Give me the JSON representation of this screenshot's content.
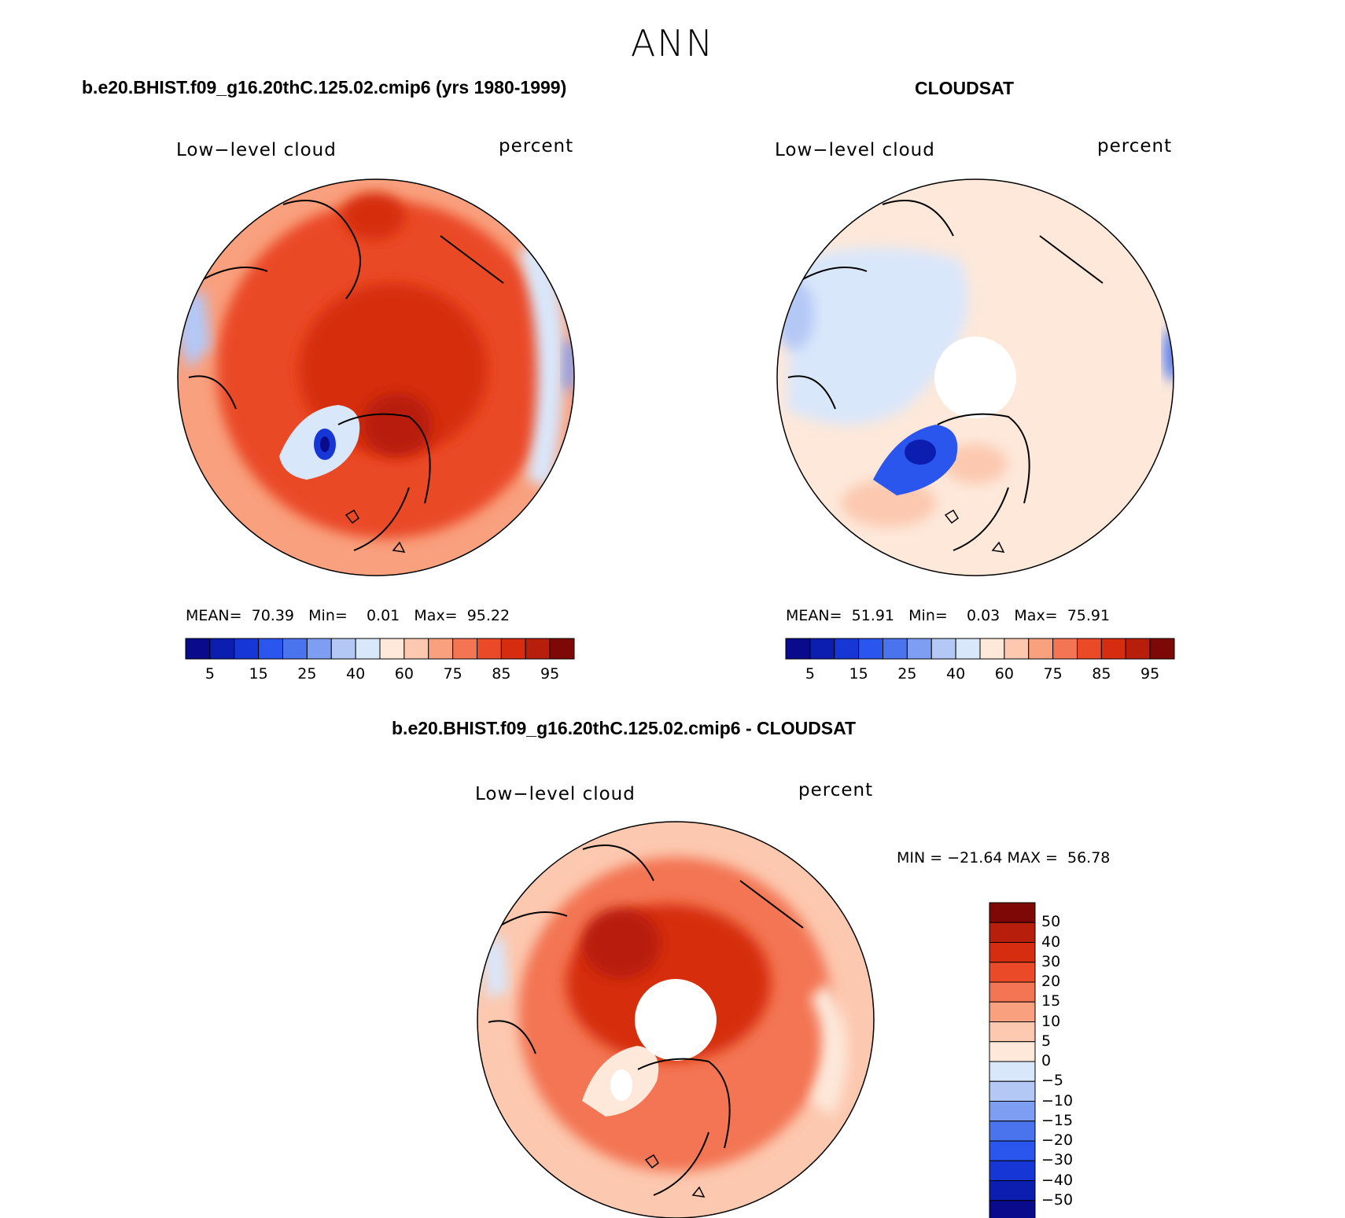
{
  "header": {
    "title": "ANN"
  },
  "panels": [
    {
      "id": "model",
      "case_title": "b.e20.BHIST.f09_g16.20thC.125.02.cmip6 (yrs 1980-1999)",
      "variable": "Low−level cloud",
      "units": "percent",
      "stats": {
        "mean_label": "MEAN=",
        "mean": "70.39",
        "min_label": "Min=",
        "min": "0.01",
        "max_label": "Max=",
        "max": "95.22"
      }
    },
    {
      "id": "obs",
      "case_title": "CLOUDSAT",
      "variable": "Low−level cloud",
      "units": "percent",
      "stats": {
        "mean_label": "MEAN=",
        "mean": "51.91",
        "min_label": "Min=",
        "min": "0.03",
        "max_label": "Max=",
        "max": "75.91"
      }
    },
    {
      "id": "diff",
      "case_title": "b.e20.BHIST.f09_g16.20thC.125.02.cmip6 - CLOUDSAT",
      "variable": "Low−level cloud",
      "units": "percent",
      "stats": {
        "text": "MIN = −21.64 MAX =  56.78"
      }
    }
  ],
  "colorbars": {
    "abs": {
      "colors": [
        "#0a0a8c",
        "#0b1eb0",
        "#1637d6",
        "#2b56ee",
        "#4a74ee",
        "#7d9ef2",
        "#b4c8f6",
        "#d9e7fb",
        "#fde8da",
        "#fcc8af",
        "#f9a07e",
        "#f37553",
        "#ea4a28",
        "#d62d10",
        "#b81e0c",
        "#7e0806"
      ],
      "ticks": [
        "5",
        "15",
        "25",
        "40",
        "60",
        "75",
        "85",
        "95"
      ]
    },
    "diff": {
      "colors": [
        "#7e0806",
        "#b81e0c",
        "#d62d10",
        "#ea4a28",
        "#f37553",
        "#f9a07e",
        "#fcc8af",
        "#fde8da",
        "#d9e7fb",
        "#b4c8f6",
        "#7d9ef2",
        "#4a74ee",
        "#2b56ee",
        "#1637d6",
        "#0b1eb0",
        "#0a0a8c"
      ],
      "ticks": [
        "50",
        "40",
        "30",
        "20",
        "15",
        "10",
        "5",
        "0",
        "−5",
        "−10",
        "−15",
        "−20",
        "−30",
        "−40",
        "−50"
      ]
    }
  },
  "map_colors": {
    "model_bg": "#ea4a28",
    "model_rim": "#f9a07e",
    "model_core": "#c42810",
    "obs_bg": "#fcc8af",
    "obs_cool": "#b4c8f6",
    "obs_deep": "#0b1eb0",
    "diff_bg": "#f37553",
    "diff_core": "#d62d10",
    "diff_warm": "#fcc8af"
  }
}
